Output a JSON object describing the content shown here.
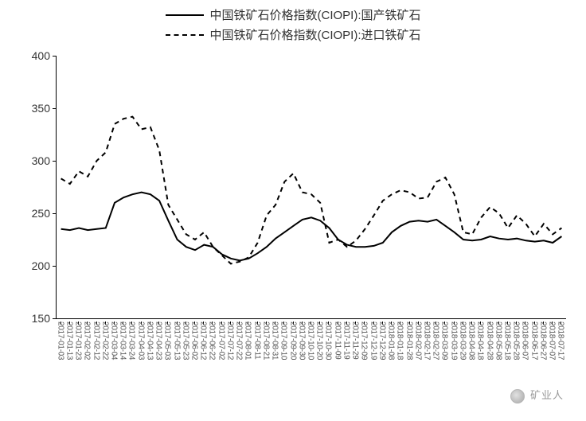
{
  "chart": {
    "type": "line",
    "background_color": "#ffffff",
    "axis_color": "#000000",
    "label_color": "#333333",
    "label_fontsize": 14,
    "xlabel_fontsize": 10,
    "legend": {
      "series1": {
        "label": "中国铁矿石价格指数(CIOPI):国产铁矿石",
        "style": "solid",
        "color": "#000000",
        "width": 2
      },
      "series2": {
        "label": "中国铁矿石价格指数(CIOPI):进口铁矿石",
        "style": "dashed",
        "color": "#000000",
        "width": 2,
        "dash": "6,5"
      }
    },
    "ylim": [
      150,
      400
    ],
    "yticks": [
      150,
      200,
      250,
      300,
      350,
      400
    ],
    "xlabels": [
      "2017-01-03",
      "2017-01-13",
      "2017-01-23",
      "2017-02-02",
      "2017-02-12",
      "2017-02-22",
      "2017-03-04",
      "2017-03-14",
      "2017-03-24",
      "2017-04-03",
      "2017-04-13",
      "2017-04-23",
      "2017-05-03",
      "2017-05-13",
      "2017-05-23",
      "2017-06-02",
      "2017-06-12",
      "2017-06-22",
      "2017-07-02",
      "2017-07-12",
      "2017-07-22",
      "2017-08-01",
      "2017-08-11",
      "2017-08-21",
      "2017-08-31",
      "2017-09-10",
      "2017-09-20",
      "2017-09-30",
      "2017-10-10",
      "2017-10-20",
      "2017-10-30",
      "2017-11-09",
      "2017-11-19",
      "2017-11-29",
      "2017-12-09",
      "2017-12-19",
      "2017-12-29",
      "2018-01-08",
      "2018-01-18",
      "2018-01-28",
      "2018-02-07",
      "2018-02-17",
      "2018-02-27",
      "2018-03-09",
      "2018-03-19",
      "2018-03-29",
      "2018-04-08",
      "2018-04-18",
      "2018-04-28",
      "2018-05-08",
      "2018-05-18",
      "2018-05-28",
      "2018-06-07",
      "2018-06-17",
      "2018-06-27",
      "2018-07-07",
      "2018-07-17"
    ],
    "series1_values": [
      235,
      234,
      236,
      234,
      235,
      236,
      260,
      265,
      268,
      270,
      268,
      262,
      243,
      225,
      218,
      215,
      220,
      218,
      211,
      207,
      205,
      207,
      212,
      218,
      226,
      232,
      238,
      244,
      246,
      243,
      236,
      225,
      220,
      218,
      218,
      219,
      222,
      232,
      238,
      242,
      243,
      242,
      244,
      238,
      232,
      225,
      224,
      225,
      228,
      226,
      225,
      226,
      224,
      223,
      224,
      222,
      228
    ],
    "series2_values": [
      283,
      278,
      290,
      285,
      300,
      308,
      335,
      340,
      342,
      330,
      332,
      310,
      258,
      244,
      230,
      225,
      232,
      218,
      210,
      202,
      204,
      208,
      222,
      248,
      258,
      280,
      288,
      270,
      268,
      260,
      222,
      225,
      218,
      224,
      235,
      248,
      262,
      268,
      272,
      270,
      264,
      265,
      280,
      284,
      268,
      232,
      230,
      246,
      256,
      250,
      236,
      248,
      240,
      228,
      240,
      230,
      236
    ],
    "watermark": "矿业人"
  }
}
